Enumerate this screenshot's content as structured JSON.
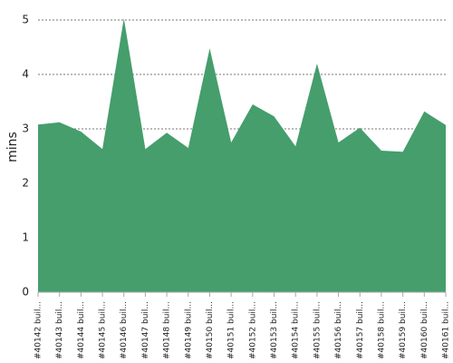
{
  "chart_data": {
    "type": "area",
    "y_label": "mins",
    "categories": [
      "#40142 buil...",
      "#40143 buil...",
      "#40144 buil...",
      "#40145 buil...",
      "#40146 buil...",
      "#40147 buil...",
      "#40148 buil...",
      "#40149 buil...",
      "#40150 buil...",
      "#40151 buil...",
      "#40152 buil...",
      "#40153 buil...",
      "#40154 buil...",
      "#40155 buil...",
      "#40156 buil...",
      "#40157 buil...",
      "#40158 buil...",
      "#40159 buil...",
      "#40160 buil...",
      "#40161 buil..."
    ],
    "values": [
      3.08,
      3.12,
      2.95,
      2.63,
      5.03,
      2.63,
      2.93,
      2.65,
      4.48,
      2.75,
      3.45,
      3.23,
      2.68,
      4.2,
      2.75,
      3.02,
      2.6,
      2.58,
      3.32,
      3.07
    ],
    "color": "#459e6c",
    "ylim": [
      0,
      5
    ],
    "yticks": [
      0,
      1,
      2,
      3,
      4,
      5
    ],
    "grid": true
  }
}
